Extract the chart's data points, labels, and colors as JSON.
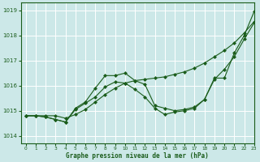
{
  "title": "Graphe pression niveau de la mer (hPa)",
  "xlim": [
    -0.5,
    23
  ],
  "ylim": [
    1013.7,
    1019.3
  ],
  "yticks": [
    1014,
    1015,
    1016,
    1017,
    1018,
    1019
  ],
  "xticks": [
    0,
    1,
    2,
    3,
    4,
    5,
    6,
    7,
    8,
    9,
    10,
    11,
    12,
    13,
    14,
    15,
    16,
    17,
    18,
    19,
    20,
    21,
    22,
    23
  ],
  "bg_color": "#cce8e8",
  "line_color": "#1a5c1a",
  "grid_color": "#ffffff",
  "line1_x": [
    0,
    1,
    2,
    3,
    4,
    5,
    6,
    7,
    8,
    9,
    10,
    11,
    12,
    13,
    14,
    15,
    16,
    17,
    18,
    19,
    20,
    21,
    22,
    23
  ],
  "line1_y": [
    1014.8,
    1014.8,
    1014.8,
    1014.8,
    1014.7,
    1014.85,
    1015.05,
    1015.35,
    1015.65,
    1015.9,
    1016.1,
    1016.2,
    1016.25,
    1016.3,
    1016.35,
    1016.45,
    1016.55,
    1016.7,
    1016.9,
    1017.15,
    1017.4,
    1017.7,
    1018.1,
    1018.55
  ],
  "line2_x": [
    0,
    1,
    2,
    3,
    4,
    5,
    6,
    7,
    8,
    9,
    10,
    11,
    12,
    13,
    14,
    15,
    16,
    17,
    18,
    19,
    20,
    21,
    22,
    23
  ],
  "line2_y": [
    1014.8,
    1014.8,
    1014.75,
    1014.65,
    1014.55,
    1015.1,
    1015.35,
    1015.9,
    1016.4,
    1016.4,
    1016.5,
    1016.2,
    1016.05,
    1015.2,
    1015.1,
    1015.0,
    1015.05,
    1015.15,
    1015.45,
    1016.3,
    1016.3,
    1017.3,
    1018.0,
    1018.95
  ],
  "line3_x": [
    0,
    1,
    2,
    3,
    4,
    5,
    6,
    7,
    8,
    9,
    10,
    11,
    12,
    13,
    14,
    15,
    16,
    17,
    18,
    19,
    20,
    21,
    22,
    23
  ],
  "line3_y": [
    1014.8,
    1014.8,
    1014.75,
    1014.65,
    1014.55,
    1015.05,
    1015.3,
    1015.55,
    1015.95,
    1016.15,
    1016.1,
    1015.85,
    1015.55,
    1015.1,
    1014.85,
    1014.95,
    1015.0,
    1015.1,
    1015.45,
    1016.25,
    1016.65,
    1017.15,
    1017.85,
    1018.5
  ],
  "marker": "D",
  "markersize": 2.5
}
